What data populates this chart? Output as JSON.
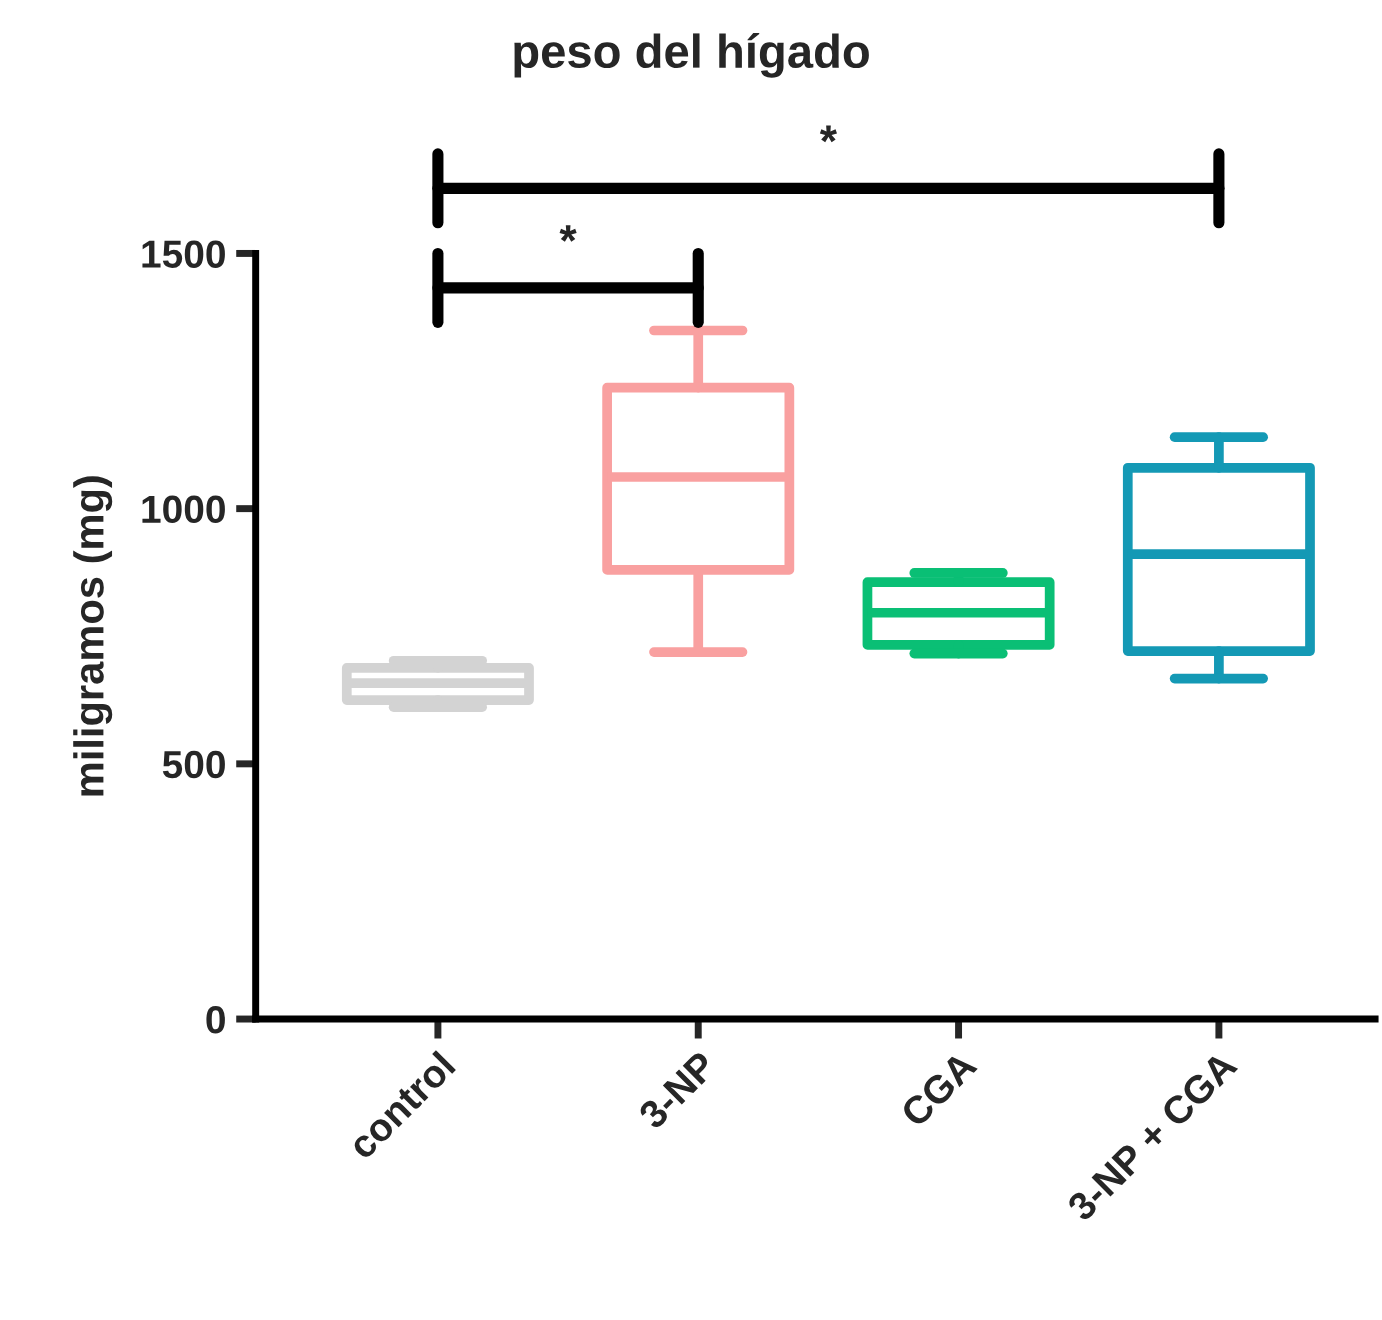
{
  "chart_data": {
    "type": "box",
    "title": "peso del hígado",
    "ylabel": "miligramos (mg)",
    "categories": [
      "control",
      "3-NP",
      "CGA",
      "3-NP + CGA"
    ],
    "colors": [
      "#d3d3d3",
      "#f9a0a0",
      "#0abf75",
      "#1499b5"
    ],
    "boxes": [
      {
        "low": 611,
        "q1": 625,
        "median": 658,
        "q3": 688,
        "high": 702
      },
      {
        "low": 719,
        "q1": 880,
        "median": 1062,
        "q3": 1237,
        "high": 1349
      },
      {
        "low": 716,
        "q1": 733,
        "median": 796,
        "q3": 856,
        "high": 874
      },
      {
        "low": 667,
        "q1": 721,
        "median": 911,
        "q3": 1080,
        "high": 1140
      }
    ],
    "ylim": [
      0,
      1500
    ],
    "yticks": [
      0,
      500,
      1000,
      1500
    ],
    "grid": false,
    "annotations": [
      "*",
      "*"
    ]
  }
}
